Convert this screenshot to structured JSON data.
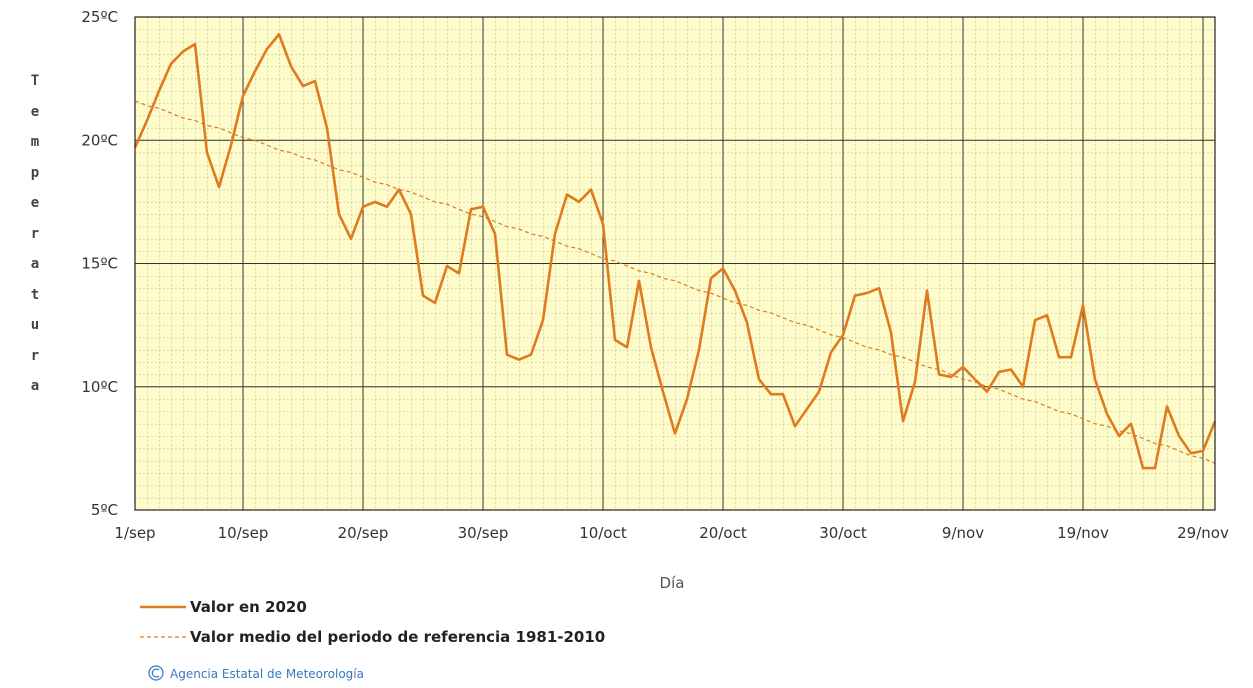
{
  "chart_data": {
    "type": "line",
    "y_label": "Temperatura",
    "x_label": "Día",
    "source": "Agencia Estatal de Meteorología",
    "categories": [
      "1/sep",
      null,
      null,
      null,
      null,
      null,
      null,
      null,
      null,
      "10/sep",
      null,
      null,
      null,
      null,
      null,
      null,
      null,
      null,
      null,
      "20/sep",
      null,
      null,
      null,
      null,
      null,
      null,
      null,
      null,
      null,
      "30/sep",
      null,
      null,
      null,
      null,
      null,
      null,
      null,
      null,
      null,
      "10/oct",
      null,
      null,
      null,
      null,
      null,
      null,
      null,
      null,
      null,
      "20/oct",
      null,
      null,
      null,
      null,
      null,
      null,
      null,
      null,
      null,
      "30/oct",
      null,
      null,
      null,
      null,
      null,
      null,
      null,
      null,
      null,
      "9/nov",
      null,
      null,
      null,
      null,
      null,
      null,
      null,
      null,
      null,
      "19/nov",
      null,
      null,
      null,
      null,
      null,
      null,
      null,
      null,
      null,
      "29/nov",
      null
    ],
    "series": [
      {
        "name": "Valor en 2020",
        "color": "#e07a1f",
        "dashed": false,
        "values": [
          19.7,
          20.8,
          22.0,
          23.1,
          23.6,
          23.9,
          19.5,
          18.1,
          19.8,
          21.8,
          22.8,
          23.7,
          24.3,
          23.0,
          22.2,
          22.4,
          20.5,
          17.0,
          16.0,
          17.3,
          17.5,
          17.3,
          18.0,
          17.0,
          13.7,
          13.4,
          14.9,
          14.6,
          17.2,
          17.3,
          16.2,
          11.3,
          11.1,
          11.3,
          12.7,
          16.2,
          17.8,
          17.5,
          18.0,
          16.6,
          11.9,
          11.6,
          14.3,
          11.6,
          9.8,
          8.1,
          9.5,
          11.5,
          14.4,
          14.8,
          13.9,
          12.6,
          10.3,
          9.7,
          9.7,
          8.4,
          9.1,
          9.8,
          11.4,
          12.1,
          13.7,
          13.8,
          14.0,
          12.2,
          8.6,
          10.2,
          13.9,
          10.5,
          10.4,
          10.8,
          10.3,
          9.8,
          10.6,
          10.7,
          10.0,
          12.7,
          12.9,
          11.2,
          11.2,
          13.3,
          10.3,
          8.9,
          8.0,
          8.5,
          6.7,
          6.7,
          9.2,
          8.0,
          7.3,
          7.4,
          8.6
        ]
      },
      {
        "name": "Valor medio del periodo de referencia 1981-2010",
        "color": "#e07a1f",
        "dashed": true,
        "values": [
          21.6,
          21.4,
          21.3,
          21.1,
          20.9,
          20.8,
          20.6,
          20.5,
          20.3,
          20.1,
          20.0,
          19.8,
          19.6,
          19.5,
          19.3,
          19.2,
          19.0,
          18.8,
          18.7,
          18.5,
          18.3,
          18.2,
          18.0,
          17.9,
          17.7,
          17.5,
          17.4,
          17.2,
          17.0,
          16.9,
          16.7,
          16.5,
          16.4,
          16.2,
          16.1,
          15.9,
          15.7,
          15.6,
          15.4,
          15.2,
          15.1,
          14.9,
          14.7,
          14.6,
          14.4,
          14.3,
          14.1,
          13.9,
          13.8,
          13.6,
          13.4,
          13.3,
          13.1,
          13.0,
          12.8,
          12.6,
          12.5,
          12.3,
          12.1,
          12.0,
          11.8,
          11.6,
          11.5,
          11.3,
          11.2,
          11.0,
          10.8,
          10.7,
          10.5,
          10.3,
          10.2,
          10.0,
          9.9,
          9.7,
          9.5,
          9.4,
          9.2,
          9.0,
          8.9,
          8.7,
          8.5,
          8.4,
          8.2,
          8.1,
          7.9,
          7.7,
          7.6,
          7.4,
          7.2,
          7.1,
          6.9
        ]
      }
    ],
    "ylim": [
      5,
      25
    ],
    "yticks": [
      {
        "value": 5,
        "label": "5ºC"
      },
      {
        "value": 10,
        "label": "10ºC"
      },
      {
        "value": 15,
        "label": "15ºC"
      },
      {
        "value": 20,
        "label": "20ºC"
      },
      {
        "value": 25,
        "label": "25ºC"
      }
    ],
    "grid": true,
    "background": "#fffccc"
  }
}
